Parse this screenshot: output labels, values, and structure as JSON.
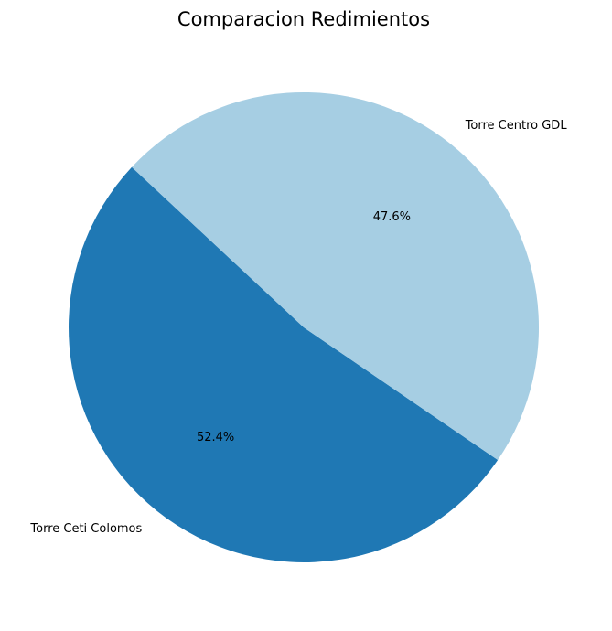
{
  "chart_data": {
    "type": "pie",
    "title": "Comparacion Redimientos",
    "slices": [
      {
        "label": "Torre Ceti Colomos",
        "value": 52.4,
        "pct_label": "52.4%",
        "color": "#1f78b4"
      },
      {
        "label": "Torre Centro GDL",
        "value": 47.6,
        "pct_label": "47.6%",
        "color": "#a6cee3"
      }
    ],
    "start_angle_deg": 137,
    "direction": "counterclockwise"
  }
}
